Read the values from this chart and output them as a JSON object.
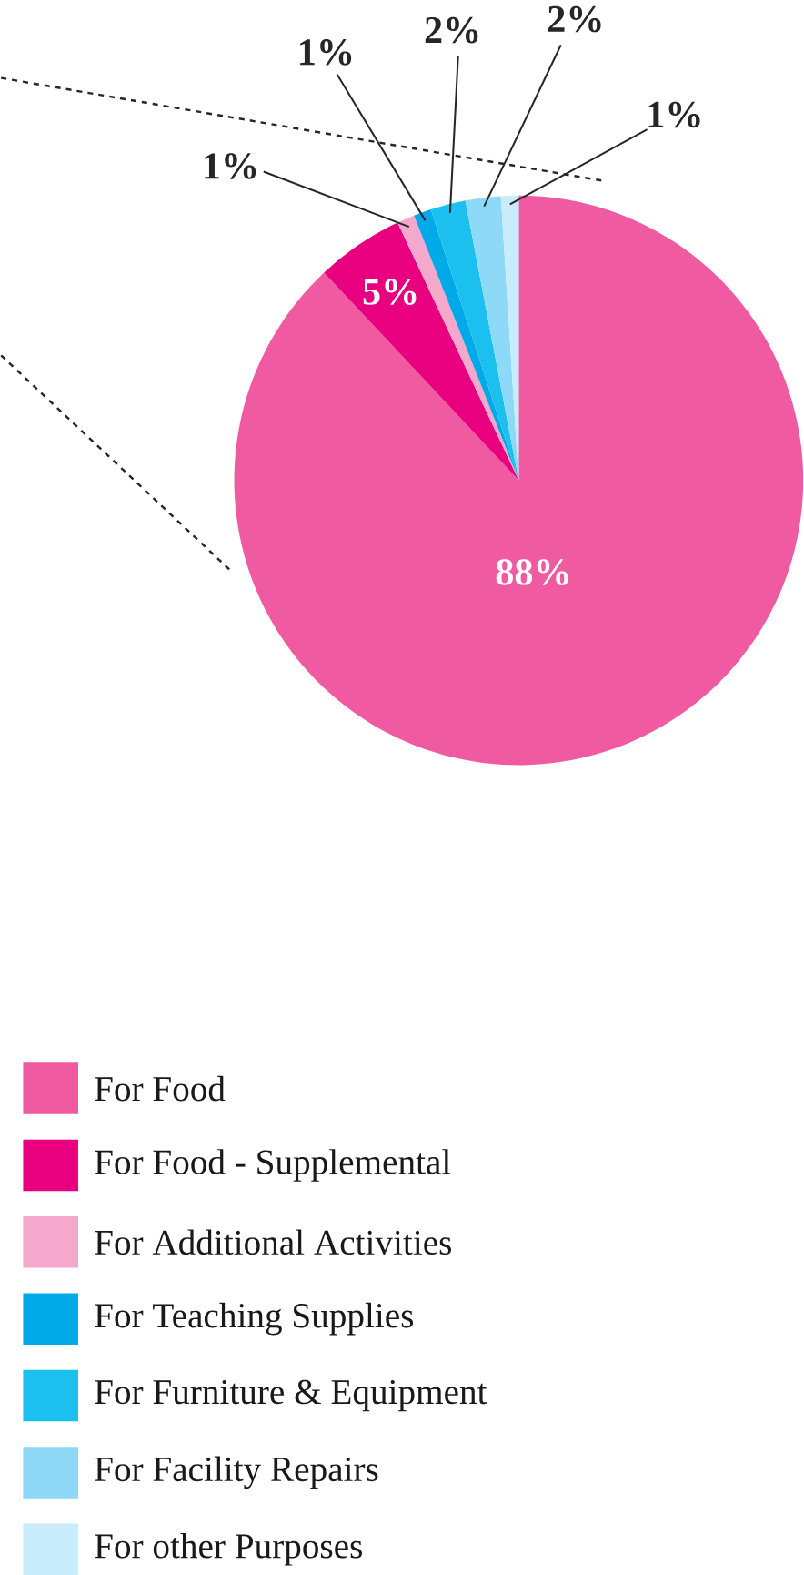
{
  "chart_data": {
    "type": "pie",
    "categories": [
      "For Food",
      "For Food - Supplemental",
      "For Additional Activities",
      "For Teaching Supplies",
      "For Furniture & Equipment",
      "For Facility Repairs",
      "For other Purposes"
    ],
    "values": [
      88,
      5,
      1,
      1,
      2,
      2,
      1
    ],
    "value_labels": [
      "88%",
      "5%",
      "1%",
      "1%",
      "2%",
      "2%",
      "1%"
    ],
    "colors": [
      "#f05aa0",
      "#e8007f",
      "#f4a8cc",
      "#00a9e8",
      "#1bc0ef",
      "#8ed8f8",
      "#c8ecfb"
    ],
    "legend": "bottom"
  }
}
